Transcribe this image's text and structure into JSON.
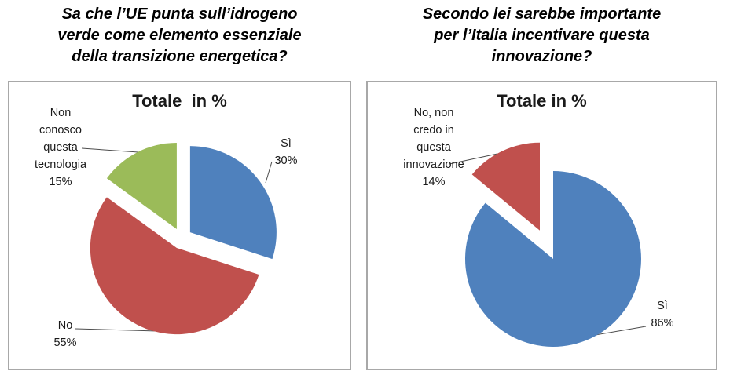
{
  "page": {
    "background": "#ffffff",
    "panel_border_color": "#a8a8a8",
    "text_color": "#1a1a1a"
  },
  "chart_data": [
    {
      "type": "pie",
      "question": "Sa che l’UE punta sull’idrogeno\nverde come elemento essenziale\ndella transizione energetica?",
      "title": "Totale  in %",
      "labels": [
        "Sì",
        "No",
        "Non conosco questa tecnologia"
      ],
      "values": [
        30,
        55,
        15
      ],
      "unit": "%",
      "colors": [
        "#4F81BD",
        "#C0504D",
        "#9BBB59"
      ],
      "explode": [
        13.5,
        13.5,
        13.5
      ],
      "start_angle_deg": 0,
      "direction": "clockwise",
      "legend": "none",
      "data_labels": "outside-with-leader-lines",
      "callouts": [
        {
          "text": "Sì\n30%"
        },
        {
          "text": "No\n55%"
        },
        {
          "text": "Non\nconosco\nquesta\ntecnologia\n15%"
        }
      ]
    },
    {
      "type": "pie",
      "question": "Secondo lei sarebbe importante\nper l’Italia incentivare questa\ninnovazione?",
      "title": "Totale in %",
      "labels": [
        "Sì",
        "No, non credo in questa innovazione"
      ],
      "values": [
        86,
        14
      ],
      "unit": "%",
      "colors": [
        "#4F81BD",
        "#C0504D"
      ],
      "explode": [
        0,
        40
      ],
      "start_angle_deg": 0,
      "direction": "clockwise",
      "legend": "none",
      "data_labels": "outside-with-leader-lines",
      "callouts": [
        {
          "text": "Sì\n86%"
        },
        {
          "text": "No, non\ncredo in\nquesta\ninnovazione\n14%"
        }
      ]
    }
  ]
}
